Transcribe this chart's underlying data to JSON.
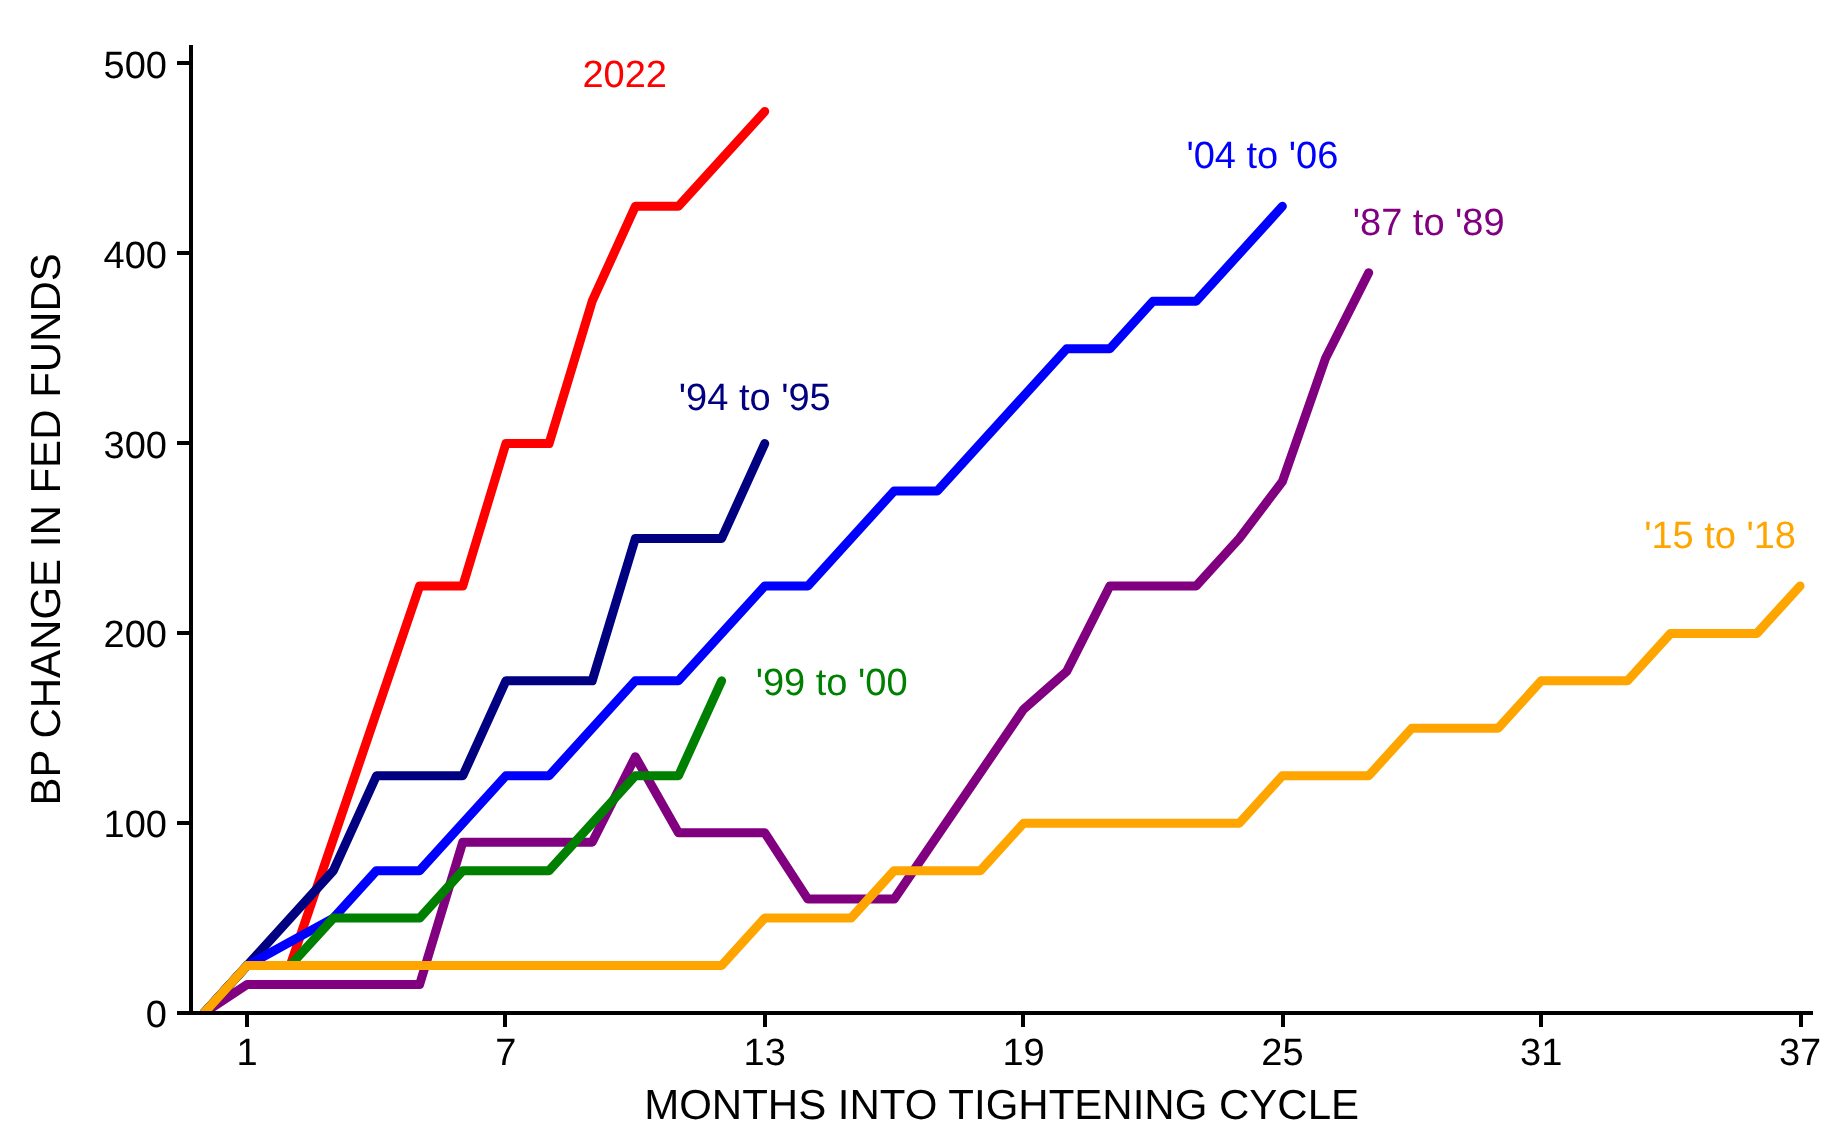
{
  "chart_data": {
    "type": "line",
    "xlabel": "MONTHS INTO TIGHTENING CYCLE",
    "ylabel": "BP CHANGE IN FED FUNDS",
    "xlim": [
      -0.3,
      37.3
    ],
    "ylim": [
      0,
      510
    ],
    "xticks": [
      1,
      7,
      13,
      19,
      25,
      31,
      37
    ],
    "yticks": [
      0,
      100,
      200,
      300,
      400,
      500
    ],
    "grid": false,
    "marker": "none",
    "line_style": "solid",
    "series": [
      {
        "name": "2022",
        "color": "#ff0000",
        "x": [
          0,
          1,
          2,
          5,
          6,
          7,
          8,
          9,
          10,
          11,
          13
        ],
        "values": [
          0,
          25,
          25,
          225,
          225,
          300,
          300,
          375,
          425,
          425,
          475
        ]
      },
      {
        "name": "'94 to '95",
        "color": "#000080",
        "x": [
          0,
          3,
          4,
          6,
          7,
          9,
          10,
          12,
          13
        ],
        "values": [
          0,
          75,
          125,
          125,
          175,
          175,
          250,
          250,
          300
        ]
      },
      {
        "name": "'04 to '06",
        "color": "#0000ff",
        "x": [
          0,
          1,
          3,
          4,
          5,
          7,
          8,
          10,
          11,
          13,
          14,
          16,
          17,
          20,
          21,
          22,
          23,
          25
        ],
        "values": [
          0,
          25,
          50,
          75,
          75,
          125,
          125,
          175,
          175,
          225,
          225,
          275,
          275,
          350,
          350,
          375,
          375,
          425
        ]
      },
      {
        "name": "'87 to '89",
        "color": "#800080",
        "x": [
          0,
          1,
          5,
          6,
          9,
          10,
          11,
          13,
          14,
          16,
          19,
          20,
          21,
          23,
          24,
          25,
          26,
          27
        ],
        "values": [
          0,
          15,
          15,
          90,
          90,
          135,
          95,
          95,
          60,
          60,
          160,
          180,
          225,
          225,
          250,
          280,
          345,
          390
        ]
      },
      {
        "name": "'99 to '00",
        "color": "#008000",
        "x": [
          0,
          1,
          2,
          3,
          5,
          6,
          8,
          10,
          11,
          12
        ],
        "values": [
          0,
          25,
          25,
          50,
          50,
          75,
          75,
          125,
          125,
          175
        ]
      },
      {
        "name": "'15 to '18",
        "color": "#ffa500",
        "x": [
          0,
          1,
          12,
          13,
          15,
          16,
          18,
          19,
          24,
          25,
          27,
          28,
          30,
          31,
          33,
          34,
          36,
          37
        ],
        "values": [
          0,
          25,
          25,
          50,
          50,
          75,
          75,
          100,
          100,
          125,
          125,
          150,
          150,
          175,
          175,
          200,
          200,
          225
        ]
      }
    ]
  }
}
